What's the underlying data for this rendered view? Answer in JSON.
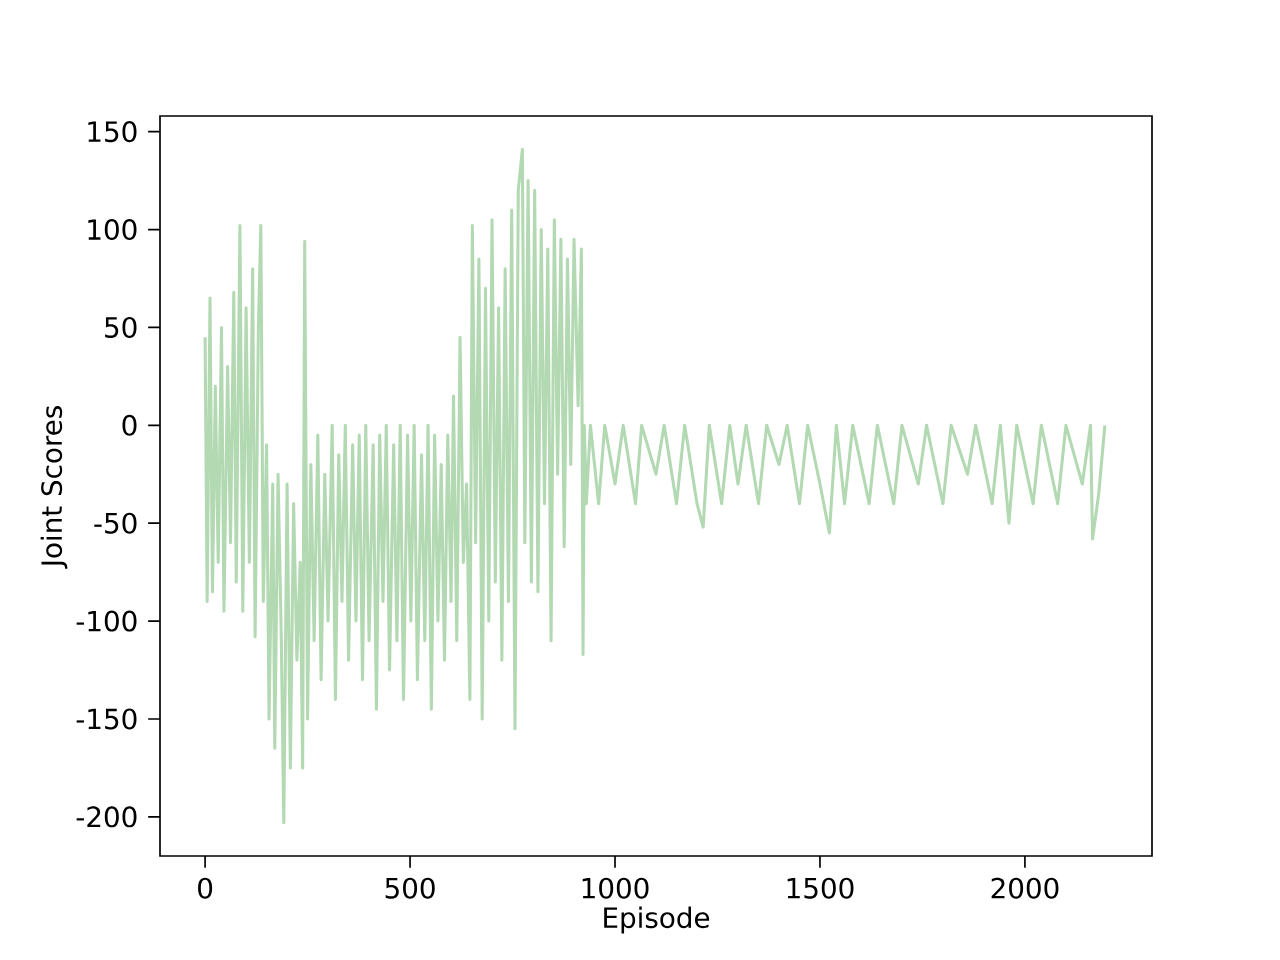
{
  "chart_data": {
    "type": "line",
    "xlabel": "Episode",
    "ylabel": "Joint Scores",
    "color": "#b3d9b3",
    "xlim": [
      -110,
      2310
    ],
    "ylim": [
      -220,
      158
    ],
    "xticks": [
      0,
      500,
      1000,
      1500,
      2000
    ],
    "yticks": [
      -200,
      -150,
      -100,
      -50,
      0,
      50,
      100,
      150
    ],
    "x": [
      0,
      5,
      12,
      18,
      25,
      32,
      40,
      46,
      55,
      62,
      70,
      76,
      85,
      92,
      100,
      108,
      116,
      122,
      130,
      136,
      142,
      150,
      156,
      165,
      170,
      178,
      186,
      192,
      200,
      208,
      216,
      224,
      232,
      238,
      243,
      250,
      258,
      266,
      275,
      283,
      292,
      300,
      310,
      318,
      326,
      334,
      342,
      350,
      360,
      368,
      376,
      384,
      392,
      400,
      410,
      418,
      426,
      434,
      442,
      450,
      460,
      468,
      476,
      484,
      494,
      502,
      510,
      518,
      528,
      536,
      544,
      552,
      560,
      568,
      576,
      584,
      592,
      600,
      606,
      614,
      622,
      630,
      638,
      646,
      652,
      660,
      668,
      676,
      684,
      692,
      700,
      708,
      716,
      724,
      732,
      740,
      748,
      756,
      764,
      774,
      780,
      788,
      796,
      804,
      812,
      820,
      828,
      836,
      844,
      852,
      860,
      868,
      876,
      884,
      892,
      900,
      910,
      918,
      922,
      925,
      930,
      940,
      960,
      975,
      1000,
      1020,
      1050,
      1065,
      1100,
      1120,
      1150,
      1170,
      1200,
      1215,
      1230,
      1260,
      1280,
      1300,
      1320,
      1350,
      1370,
      1400,
      1420,
      1450,
      1470,
      1500,
      1523,
      1540,
      1560,
      1580,
      1620,
      1640,
      1680,
      1700,
      1740,
      1760,
      1800,
      1820,
      1860,
      1880,
      1920,
      1940,
      1961,
      1980,
      2020,
      2040,
      2080,
      2100,
      2140,
      2160,
      2165,
      2180,
      2195
    ],
    "values": [
      45,
      -90,
      65,
      -85,
      20,
      -70,
      50,
      -95,
      30,
      -60,
      68,
      -80,
      102,
      -95,
      60,
      -70,
      80,
      -108,
      50,
      102,
      -90,
      -10,
      -150,
      -30,
      -165,
      -25,
      -110,
      -203,
      -30,
      -175,
      -40,
      -120,
      -70,
      -175,
      94,
      -150,
      -20,
      -110,
      -5,
      -130,
      -25,
      -100,
      0,
      -140,
      -15,
      -90,
      0,
      -120,
      -10,
      -100,
      -5,
      -130,
      0,
      -110,
      -10,
      -145,
      -5,
      -90,
      0,
      -125,
      -10,
      -110,
      0,
      -140,
      -5,
      -100,
      0,
      -130,
      -15,
      -110,
      0,
      -145,
      -5,
      -100,
      -20,
      -120,
      -5,
      -90,
      15,
      -110,
      45,
      -70,
      -30,
      -140,
      102,
      -60,
      85,
      -150,
      70,
      -100,
      105,
      -80,
      60,
      -120,
      80,
      -90,
      110,
      -155,
      120,
      141,
      -60,
      125,
      -80,
      120,
      -85,
      100,
      -40,
      90,
      -110,
      105,
      -25,
      95,
      -62,
      85,
      -20,
      95,
      10,
      90,
      -117,
      0,
      -40,
      0,
      -40,
      0,
      -30,
      0,
      -40,
      0,
      -25,
      0,
      -40,
      0,
      -40,
      -52,
      0,
      -40,
      0,
      -30,
      0,
      -40,
      0,
      -20,
      0,
      -40,
      0,
      -30,
      -55,
      0,
      -40,
      0,
      -40,
      0,
      -40,
      0,
      -30,
      0,
      -40,
      0,
      -25,
      0,
      -40,
      0,
      -50,
      0,
      -40,
      0,
      -40,
      0,
      -30,
      0,
      -58,
      -35,
      0
    ]
  }
}
